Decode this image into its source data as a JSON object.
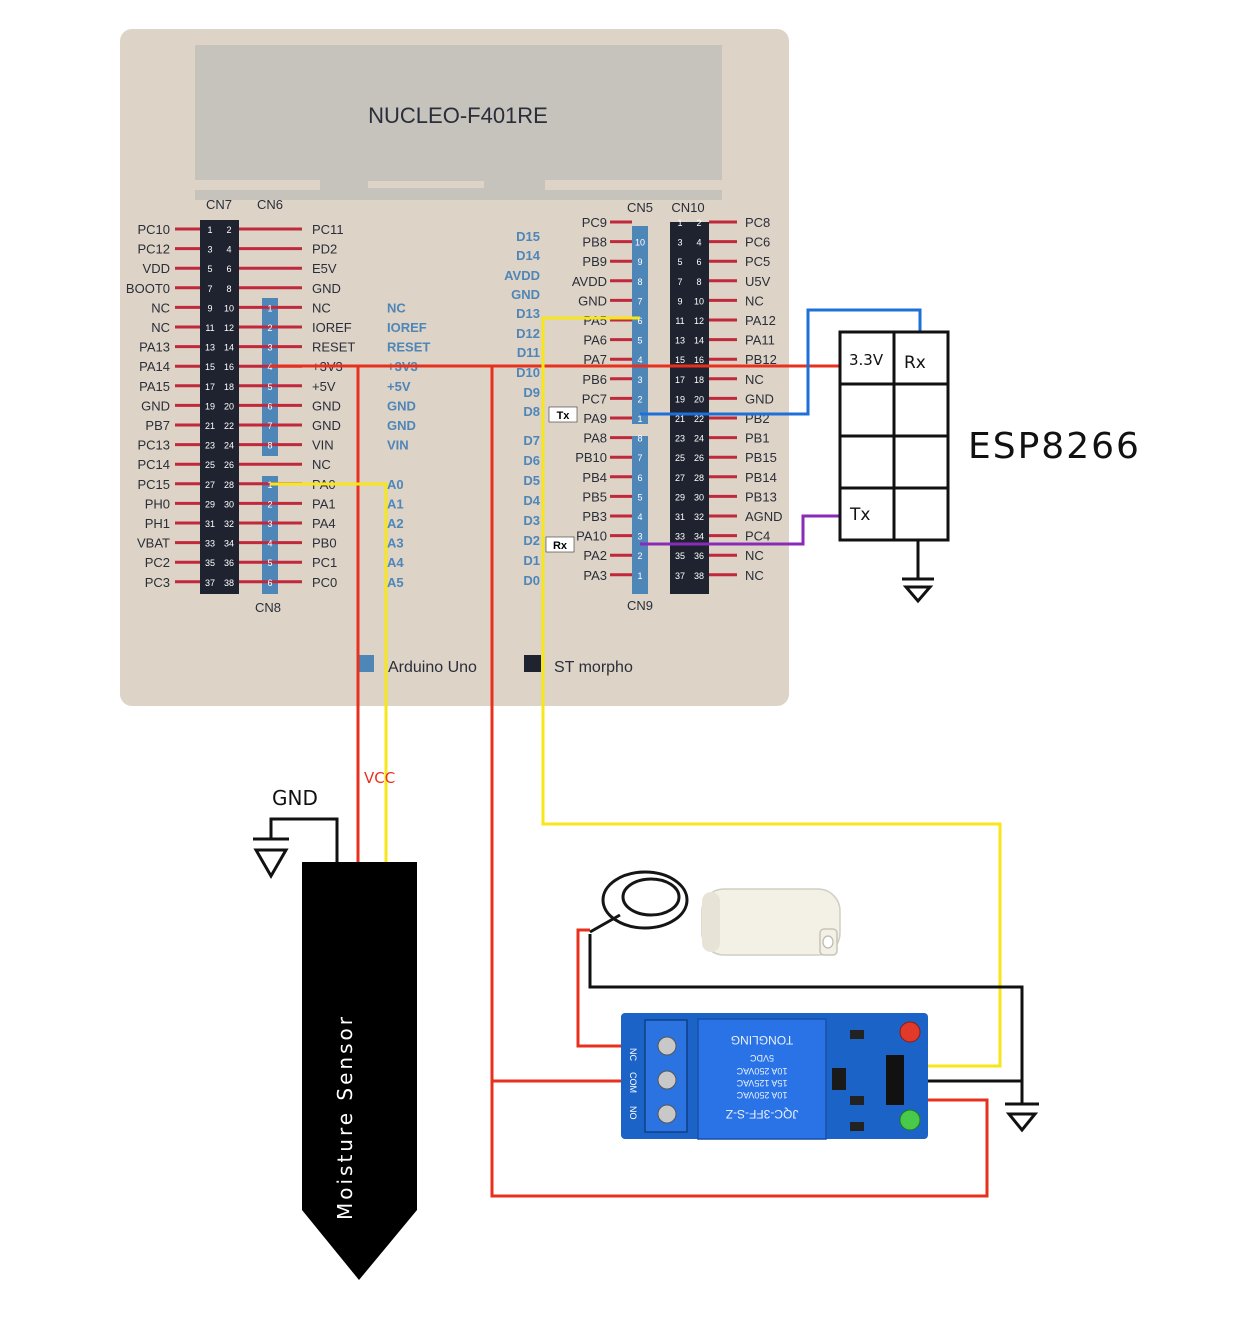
{
  "board": {
    "title": "NUCLEO-F401RE",
    "connectors": {
      "cn7": "CN7",
      "cn6": "CN6",
      "cn8": "CN8",
      "cn5": "CN5",
      "cn10": "CN10",
      "cn9": "CN9"
    },
    "cn7_left": [
      "PC10",
      "PC12",
      "VDD",
      "BOOT0",
      "NC",
      "NC",
      "PA13",
      "PA14",
      "PA15",
      "GND",
      "PB7",
      "PC13",
      "PC14",
      "PC15",
      "PH0",
      "PH1",
      "VBAT",
      "PC2",
      "PC3"
    ],
    "cn7_right": [
      "PC11",
      "PD2",
      "E5V",
      "GND",
      "NC",
      "IOREF",
      "RESET",
      "+3V3",
      "+5V",
      "GND",
      "GND",
      "VIN",
      "NC",
      "PA0",
      "PA1",
      "PA4",
      "PB0",
      "PC1",
      "PC0"
    ],
    "cn7_nums_left": [
      "1",
      "3",
      "5",
      "7",
      "9",
      "11",
      "13",
      "15",
      "17",
      "19",
      "21",
      "23",
      "25",
      "27",
      "29",
      "31",
      "33",
      "35",
      "37"
    ],
    "cn7_nums_right": [
      "2",
      "4",
      "6",
      "8",
      "10",
      "12",
      "14",
      "16",
      "18",
      "20",
      "22",
      "24",
      "26",
      "28",
      "30",
      "32",
      "34",
      "36",
      "38"
    ],
    "cn6_nums": [
      "1",
      "2",
      "3",
      "4",
      "5",
      "6",
      "7",
      "8"
    ],
    "cn8_nums": [
      "1",
      "2",
      "3",
      "4",
      "5",
      "6"
    ],
    "arduino_power": [
      "NC",
      "IOREF",
      "RESET",
      "+3V3",
      "+5V",
      "GND",
      "GND",
      "VIN"
    ],
    "arduino_analog": [
      "A0",
      "A1",
      "A2",
      "A3",
      "A4",
      "A5"
    ],
    "cn10_left": [
      "PC9",
      "PB8",
      "PB9",
      "AVDD",
      "GND",
      "PA5",
      "PA6",
      "PA7",
      "PB6",
      "PC7",
      "PA9",
      "PA8",
      "PB10",
      "PB4",
      "PB5",
      "PB3",
      "PA10",
      "PA2",
      "PA3"
    ],
    "cn10_right": [
      "PC8",
      "PC6",
      "PC5",
      "U5V",
      "NC",
      "PA12",
      "PA11",
      "PB12",
      "NC",
      "GND",
      "PB2",
      "PB1",
      "PB15",
      "PB14",
      "PB13",
      "AGND",
      "PC4",
      "NC",
      "NC"
    ],
    "cn10_nums_left": [
      "1",
      "3",
      "5",
      "7",
      "9",
      "11",
      "13",
      "15",
      "17",
      "19",
      "21",
      "23",
      "25",
      "27",
      "29",
      "31",
      "33",
      "35",
      "37"
    ],
    "cn10_nums_right": [
      "2",
      "4",
      "6",
      "8",
      "10",
      "12",
      "14",
      "16",
      "18",
      "20",
      "22",
      "24",
      "26",
      "28",
      "30",
      "32",
      "34",
      "36",
      "38"
    ],
    "cn5_nums": [
      "10",
      "9",
      "8",
      "7",
      "6",
      "5",
      "4",
      "3",
      "2",
      "1"
    ],
    "cn9_nums": [
      "8",
      "7",
      "6",
      "5",
      "4",
      "3",
      "2",
      "1"
    ],
    "arduino_digital": [
      "D15",
      "D14",
      "AVDD",
      "GND",
      "D13",
      "D12",
      "D11",
      "D10",
      "D9",
      "D8",
      "D7",
      "D6",
      "D5",
      "D4",
      "D3",
      "D2",
      "D1",
      "D0"
    ],
    "legend": {
      "arduino": "Arduino Uno",
      "morpho": "ST morpho"
    }
  },
  "esp": {
    "title": "ESP8266",
    "pin_3v3": "3.3V",
    "pin_rx": "Rx",
    "pin_tx": "Tx"
  },
  "tags": {
    "tx": "Tx",
    "rx": "Rx"
  },
  "labels": {
    "gnd": "GND",
    "vcc": "VCC",
    "moisture": "Moisture Sensor"
  },
  "relay": {
    "model": "JQC-3FF-S-Z",
    "line1": "10A 250VAC",
    "line2": "15A 125VAC",
    "line3": "10A 250VAC",
    "line4": "5VDC",
    "brand": "TONGLING",
    "terminals": [
      "NC",
      "COM",
      "NO"
    ]
  },
  "colors": {
    "board": "#ddd3c6",
    "panel": "#c6c2bc",
    "pin_red": "#c0283c",
    "arduino_blue": "#4f86b8",
    "header_dark": "#1f2330",
    "wire_red": "#e8301e",
    "wire_yellow": "#f7e61a",
    "wire_blue": "#1f6fd8",
    "wire_purple": "#8a2bb8",
    "relay_blue": "#1c63c7"
  }
}
